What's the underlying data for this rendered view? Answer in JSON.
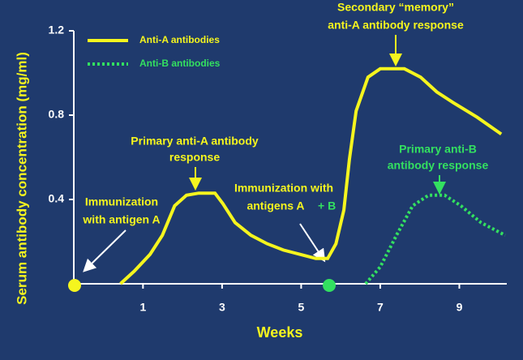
{
  "chart_data": {
    "type": "line",
    "x_label": "Weeks",
    "y_label": "Serum antibody concentration (mg/ml)",
    "xlim": [
      -0.75,
      10.2
    ],
    "ylim": [
      0,
      1.2
    ],
    "xticks": [
      1,
      3,
      5,
      7,
      9
    ],
    "yticks": [
      0.4,
      0.8,
      1.2
    ],
    "series": [
      {
        "name": "Anti-A antibodies",
        "color": "#f5f51e",
        "style": "solid",
        "x": [
          0.43,
          0.78,
          1.18,
          1.49,
          1.8,
          2.1,
          2.41,
          2.82,
          3.02,
          3.33,
          3.73,
          4.14,
          4.55,
          4.96,
          5.37,
          5.67,
          5.88,
          6.08,
          6.22,
          6.39,
          6.69,
          7.0,
          7.61,
          8.02,
          8.43,
          8.84,
          9.45,
          10.06
        ],
        "values": [
          0,
          0.06,
          0.14,
          0.23,
          0.37,
          0.42,
          0.43,
          0.43,
          0.38,
          0.29,
          0.23,
          0.19,
          0.16,
          0.14,
          0.12,
          0.12,
          0.19,
          0.35,
          0.59,
          0.82,
          0.98,
          1.02,
          1.02,
          0.98,
          0.91,
          0.86,
          0.79,
          0.71
        ]
      },
      {
        "name": "Anti-B antibodies",
        "color": "#33e060",
        "style": "dotted",
        "x": [
          6.63,
          7.0,
          7.41,
          7.82,
          8.22,
          8.63,
          9.04,
          9.55,
          10.16
        ],
        "values": [
          0,
          0.08,
          0.23,
          0.37,
          0.42,
          0.42,
          0.37,
          0.29,
          0.23
        ]
      }
    ],
    "markers": [
      {
        "x": -0.73,
        "color": "#f5f51e"
      },
      {
        "x": 5.71,
        "color": "#33e060"
      }
    ],
    "annotations": [
      {
        "lines": [
          "Immunization",
          "with antigen A"
        ]
      },
      {
        "lines": [
          "Primary anti-A antibody",
          "response"
        ]
      },
      {
        "lines": [
          "Immunization with",
          "antigens A"
        ],
        "extra": "+ B"
      },
      {
        "lines": [
          "Secondary “memory”",
          "anti-A antibody response"
        ]
      },
      {
        "lines": [
          "Primary anti-B",
          "antibody  response"
        ]
      }
    ]
  }
}
